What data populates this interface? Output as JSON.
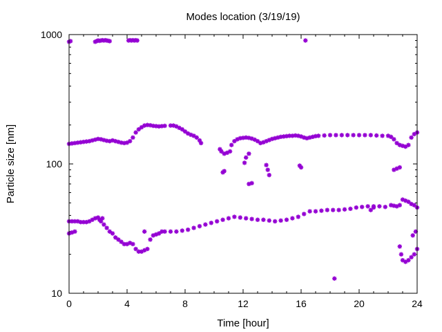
{
  "chart_data": {
    "type": "scatter",
    "title": "Modes location (3/19/19)",
    "xlabel": "Time [hour]",
    "ylabel": "Particle size [nm]",
    "xlim": [
      0,
      24
    ],
    "ylim": [
      10,
      1000
    ],
    "yscale": "log",
    "grid": false,
    "legend": "none",
    "x_ticks": [
      0,
      4,
      8,
      12,
      16,
      20,
      24
    ],
    "x_tick_labels": [
      "0",
      "4",
      "8",
      "12",
      "16",
      "20",
      "24"
    ],
    "y_ticks": [
      10,
      100,
      1000
    ],
    "y_tick_labels": [
      "10",
      "100",
      "1000"
    ],
    "marker_color": "#9400d3",
    "series": [
      {
        "points": [
          [
            0.0,
            880
          ],
          [
            0.1,
            890
          ],
          [
            1.8,
            880
          ],
          [
            1.9,
            890
          ],
          [
            2.0,
            900
          ],
          [
            2.1,
            895
          ],
          [
            2.2,
            900
          ],
          [
            2.3,
            905
          ],
          [
            2.4,
            900
          ],
          [
            2.5,
            905
          ],
          [
            2.6,
            900
          ],
          [
            2.7,
            895
          ],
          [
            2.8,
            890
          ],
          [
            4.1,
            900
          ],
          [
            4.2,
            905
          ],
          [
            4.3,
            900
          ],
          [
            4.4,
            905
          ],
          [
            4.5,
            900
          ],
          [
            4.6,
            905
          ],
          [
            4.7,
            900
          ],
          [
            16.3,
            900
          ],
          [
            0.0,
            143
          ],
          [
            0.2,
            144
          ],
          [
            0.4,
            145
          ],
          [
            0.6,
            146
          ],
          [
            0.8,
            147
          ],
          [
            1.0,
            148
          ],
          [
            1.2,
            149
          ],
          [
            1.4,
            150
          ],
          [
            1.6,
            152
          ],
          [
            1.8,
            154
          ],
          [
            2.0,
            156
          ],
          [
            2.2,
            155
          ],
          [
            2.4,
            153
          ],
          [
            2.6,
            151
          ],
          [
            2.8,
            150
          ],
          [
            3.0,
            152
          ],
          [
            3.2,
            150
          ],
          [
            3.4,
            148
          ],
          [
            3.6,
            146
          ],
          [
            3.8,
            145
          ],
          [
            4.0,
            146
          ],
          [
            4.2,
            150
          ],
          [
            4.4,
            160
          ],
          [
            4.6,
            175
          ],
          [
            4.8,
            185
          ],
          [
            5.0,
            192
          ],
          [
            5.2,
            198
          ],
          [
            5.4,
            200
          ],
          [
            5.6,
            199
          ],
          [
            5.8,
            197
          ],
          [
            6.0,
            196
          ],
          [
            6.2,
            195
          ],
          [
            6.4,
            196
          ],
          [
            6.6,
            197
          ],
          [
            7.0,
            198
          ],
          [
            7.2,
            198
          ],
          [
            7.4,
            195
          ],
          [
            7.6,
            190
          ],
          [
            7.8,
            185
          ],
          [
            8.0,
            178
          ],
          [
            8.2,
            172
          ],
          [
            8.4,
            168
          ],
          [
            8.6,
            165
          ],
          [
            8.8,
            160
          ],
          [
            9.0,
            152
          ],
          [
            9.1,
            145
          ],
          [
            10.4,
            130
          ],
          [
            10.5,
            125
          ],
          [
            10.7,
            120
          ],
          [
            10.9,
            122
          ],
          [
            11.1,
            125
          ],
          [
            11.2,
            140
          ],
          [
            11.4,
            150
          ],
          [
            11.6,
            155
          ],
          [
            11.8,
            158
          ],
          [
            12.0,
            159
          ],
          [
            12.2,
            160
          ],
          [
            12.4,
            159
          ],
          [
            12.6,
            157
          ],
          [
            12.8,
            154
          ],
          [
            13.0,
            150
          ],
          [
            13.2,
            145
          ],
          [
            13.4,
            147
          ],
          [
            13.6,
            150
          ],
          [
            13.8,
            153
          ],
          [
            14.0,
            156
          ],
          [
            14.2,
            158
          ],
          [
            14.4,
            160
          ],
          [
            14.6,
            162
          ],
          [
            14.8,
            163
          ],
          [
            15.0,
            164
          ],
          [
            15.2,
            165
          ],
          [
            15.4,
            165
          ],
          [
            15.6,
            166
          ],
          [
            15.8,
            165
          ],
          [
            16.0,
            163
          ],
          [
            16.2,
            160
          ],
          [
            16.4,
            158
          ],
          [
            16.6,
            160
          ],
          [
            16.8,
            162
          ],
          [
            17.0,
            164
          ],
          [
            17.2,
            165
          ],
          [
            17.6,
            166
          ],
          [
            18.0,
            167
          ],
          [
            18.4,
            167
          ],
          [
            18.8,
            167
          ],
          [
            19.2,
            167
          ],
          [
            19.6,
            167
          ],
          [
            20.0,
            167
          ],
          [
            20.4,
            167
          ],
          [
            20.8,
            167
          ],
          [
            21.2,
            166
          ],
          [
            21.6,
            165
          ],
          [
            22.0,
            165
          ],
          [
            22.2,
            162
          ],
          [
            22.4,
            155
          ],
          [
            22.6,
            145
          ],
          [
            22.8,
            140
          ],
          [
            23.0,
            138
          ],
          [
            23.2,
            136
          ],
          [
            23.4,
            140
          ],
          [
            23.6,
            160
          ],
          [
            23.8,
            170
          ],
          [
            24.0,
            175
          ],
          [
            12.2,
            112
          ],
          [
            12.4,
            120
          ],
          [
            12.1,
            102
          ],
          [
            10.6,
            86
          ],
          [
            10.7,
            88
          ],
          [
            12.4,
            70
          ],
          [
            12.6,
            71
          ],
          [
            13.6,
            98
          ],
          [
            13.7,
            90
          ],
          [
            13.8,
            82
          ],
          [
            15.9,
            97
          ],
          [
            16.0,
            94
          ],
          [
            22.4,
            90
          ],
          [
            22.6,
            92
          ],
          [
            22.8,
            94
          ],
          [
            0.0,
            36
          ],
          [
            0.2,
            36
          ],
          [
            0.4,
            36
          ],
          [
            0.6,
            36
          ],
          [
            0.8,
            35.5
          ],
          [
            1.0,
            35.5
          ],
          [
            1.2,
            35.5
          ],
          [
            1.4,
            36
          ],
          [
            1.6,
            37
          ],
          [
            1.8,
            38
          ],
          [
            2.0,
            38.5
          ],
          [
            2.2,
            36
          ],
          [
            2.4,
            34
          ],
          [
            2.6,
            32
          ],
          [
            2.8,
            30
          ],
          [
            3.0,
            29
          ],
          [
            3.2,
            27
          ],
          [
            3.4,
            26
          ],
          [
            3.6,
            25
          ],
          [
            3.8,
            24
          ],
          [
            4.0,
            24
          ],
          [
            4.2,
            24.5
          ],
          [
            4.4,
            24
          ],
          [
            4.6,
            22
          ],
          [
            4.8,
            21
          ],
          [
            5.0,
            21
          ],
          [
            5.2,
            21.5
          ],
          [
            5.4,
            22
          ],
          [
            5.6,
            26
          ],
          [
            5.8,
            28
          ],
          [
            6.0,
            28.5
          ],
          [
            6.2,
            29
          ],
          [
            6.4,
            30
          ],
          [
            6.6,
            30
          ],
          [
            7.0,
            30
          ],
          [
            7.4,
            30
          ],
          [
            7.8,
            30.5
          ],
          [
            8.2,
            31
          ],
          [
            8.6,
            32
          ],
          [
            9.0,
            33
          ],
          [
            9.4,
            34
          ],
          [
            9.8,
            35
          ],
          [
            10.2,
            36
          ],
          [
            10.6,
            37
          ],
          [
            11.0,
            38
          ],
          [
            11.4,
            39
          ],
          [
            11.8,
            38.5
          ],
          [
            12.2,
            38
          ],
          [
            12.6,
            37.5
          ],
          [
            13.0,
            37
          ],
          [
            13.4,
            37
          ],
          [
            13.8,
            36.5
          ],
          [
            14.2,
            36
          ],
          [
            14.6,
            36.5
          ],
          [
            15.0,
            37
          ],
          [
            15.4,
            38
          ],
          [
            15.8,
            39
          ],
          [
            16.2,
            41
          ],
          [
            16.6,
            43
          ],
          [
            17.0,
            43
          ],
          [
            17.4,
            43.5
          ],
          [
            17.8,
            44
          ],
          [
            18.2,
            44
          ],
          [
            18.6,
            44
          ],
          [
            19.0,
            44.5
          ],
          [
            19.4,
            45
          ],
          [
            19.8,
            46
          ],
          [
            20.2,
            46.5
          ],
          [
            20.6,
            47
          ],
          [
            21.0,
            47
          ],
          [
            21.4,
            47
          ],
          [
            21.8,
            46.5
          ],
          [
            22.2,
            48
          ],
          [
            22.4,
            47.5
          ],
          [
            22.6,
            47
          ],
          [
            22.8,
            48
          ],
          [
            23.0,
            53
          ],
          [
            23.2,
            52
          ],
          [
            23.4,
            51
          ],
          [
            23.6,
            49
          ],
          [
            23.8,
            48
          ],
          [
            24.0,
            46
          ],
          [
            0.0,
            29
          ],
          [
            0.2,
            29.5
          ],
          [
            0.4,
            30
          ],
          [
            2.1,
            37
          ],
          [
            2.3,
            38
          ],
          [
            5.2,
            30
          ],
          [
            20.8,
            44
          ],
          [
            21.0,
            46
          ],
          [
            22.8,
            23
          ],
          [
            22.9,
            20
          ],
          [
            23.0,
            18
          ],
          [
            23.2,
            17.5
          ],
          [
            23.4,
            18
          ],
          [
            23.6,
            19
          ],
          [
            23.8,
            20
          ],
          [
            24.0,
            22
          ],
          [
            23.7,
            28
          ],
          [
            23.9,
            30
          ],
          [
            18.3,
            13
          ]
        ]
      }
    ]
  }
}
